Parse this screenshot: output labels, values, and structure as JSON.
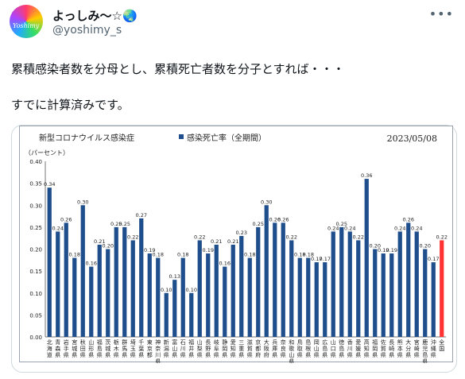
{
  "tweet": {
    "display_name": "よっしみ〜☆",
    "display_name_emoji": "🌏",
    "handle": "@yoshimy_s",
    "avatar_text": "Yoshimy",
    "menu_icon": "more-icon",
    "line1": "累積感染者数を分母とし、累積死亡者数を分子とすれば・・・",
    "line2": "すでに計算済みです。"
  },
  "colors": {
    "bar": "#1f4e8c",
    "highlight_bar": "#ff3333",
    "text": "#0f1419",
    "muted": "#536471"
  },
  "chart_data": {
    "type": "bar",
    "title": "新型コロナウイルス感染症",
    "legend": "感染死亡率（全期間）",
    "date": "2023/05/08",
    "ylabel": "（パーセント）",
    "ylim": [
      0,
      0.4
    ],
    "yticks": [
      "0.00",
      "0.05",
      "0.10",
      "0.15",
      "0.20",
      "0.25",
      "0.30",
      "0.35",
      "0.40"
    ],
    "grid": false,
    "categories": [
      "北海道",
      "青森県",
      "岩手県",
      "宮城県",
      "秋田県",
      "山形県",
      "福島県",
      "茨城県",
      "栃木県",
      "群馬県",
      "埼玉県",
      "千葉県",
      "東京都",
      "神奈川県",
      "新潟県",
      "富山県",
      "石川県",
      "福井県",
      "山梨県",
      "長野県",
      "岐阜県",
      "静岡県",
      "愛知県",
      "三重県",
      "滋賀県",
      "京都府",
      "大阪府",
      "兵庫県",
      "奈良県",
      "和歌山県",
      "鳥取県",
      "島根県",
      "岡山県",
      "広島県",
      "山口県",
      "徳島県",
      "香川県",
      "愛媛県",
      "高知県",
      "福岡県",
      "佐賀県",
      "長崎県",
      "熊本県",
      "大分県",
      "宮崎県",
      "鹿児島県",
      "沖縄県",
      "全国"
    ],
    "values": [
      0.34,
      0.24,
      0.26,
      0.18,
      0.3,
      0.16,
      0.21,
      0.2,
      0.25,
      0.25,
      0.22,
      0.27,
      0.19,
      0.18,
      0.1,
      0.13,
      0.18,
      0.1,
      0.22,
      0.19,
      0.21,
      0.16,
      0.21,
      0.23,
      0.18,
      0.25,
      0.3,
      0.26,
      0.26,
      0.22,
      0.18,
      0.18,
      0.17,
      0.17,
      0.24,
      0.25,
      0.24,
      0.22,
      0.36,
      0.2,
      0.19,
      0.19,
      0.24,
      0.26,
      0.24,
      0.2,
      0.17,
      0.22
    ],
    "labels": [
      "0.34",
      "0.24",
      "0.26",
      "0.18",
      "0.30",
      "0.16",
      "0.21",
      "0.20",
      "0.25",
      "0.25",
      "0.22",
      "0.27",
      "0.19",
      "0.18",
      "0.10",
      "0.13",
      "0.18",
      "0.10",
      "0.22",
      "0.19",
      "0.21",
      "0.16",
      "0.21",
      "0.23",
      "0.18",
      "0.25",
      "0.30",
      "0.26",
      "0.26",
      "0.22",
      "0.18",
      "0.18",
      "0.17",
      "0.17",
      "0.24",
      "0.25",
      "0.24",
      "0.22",
      "0.36",
      "0.20",
      "0.19",
      "0.19",
      "0.24",
      "0.26",
      "0.24",
      "0.20",
      "0.17",
      "0.22"
    ],
    "highlight": "全国"
  }
}
